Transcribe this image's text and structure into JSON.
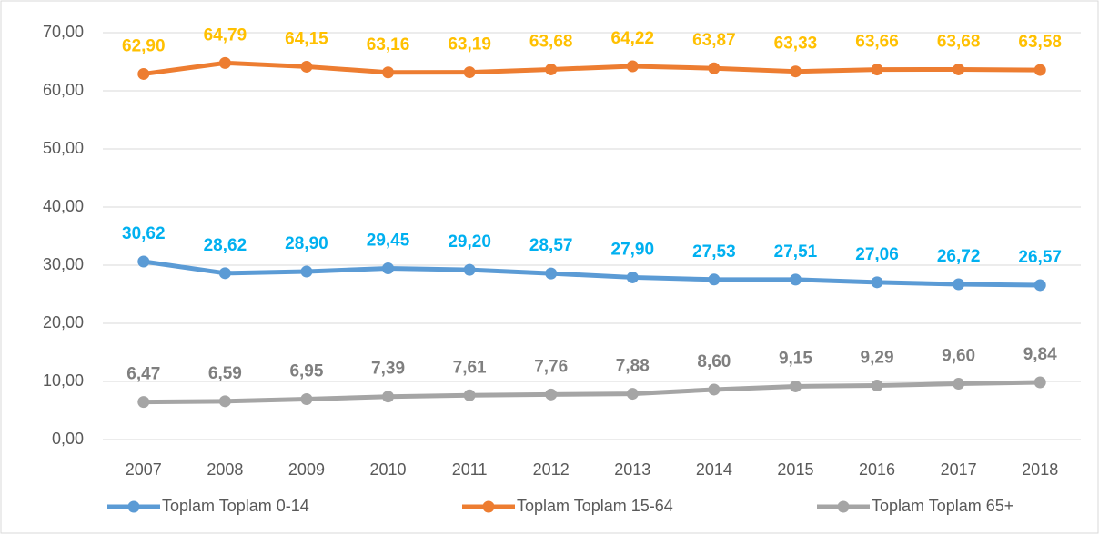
{
  "chart_data": {
    "type": "line",
    "categories": [
      "2007",
      "2008",
      "2009",
      "2010",
      "2011",
      "2012",
      "2013",
      "2014",
      "2015",
      "2016",
      "2017",
      "2018"
    ],
    "series": [
      {
        "name": "Toplam Toplam 0-14",
        "color": "#5b9bd5",
        "label_color": "#00b0f0",
        "values": [
          30.62,
          28.62,
          28.9,
          29.45,
          29.2,
          28.57,
          27.9,
          27.53,
          27.51,
          27.06,
          26.72,
          26.57
        ],
        "value_labels": [
          "30,62",
          "28,62",
          "28,90",
          "29,45",
          "29,20",
          "28,57",
          "27,90",
          "27,53",
          "27,51",
          "27,06",
          "26,72",
          "26,57"
        ]
      },
      {
        "name": "Toplam Toplam 15-64",
        "color": "#ed7d31",
        "label_color": "#ffc000",
        "values": [
          62.9,
          64.79,
          64.15,
          63.16,
          63.19,
          63.68,
          64.22,
          63.87,
          63.33,
          63.66,
          63.68,
          63.58
        ],
        "value_labels": [
          "62,90",
          "64,79",
          "64,15",
          "63,16",
          "63,19",
          "63,68",
          "64,22",
          "63,87",
          "63,33",
          "63,66",
          "63,68",
          "63,58"
        ]
      },
      {
        "name": "Toplam Toplam 65+",
        "color": "#a5a5a5",
        "label_color": "#7f7f7f",
        "values": [
          6.47,
          6.59,
          6.95,
          7.39,
          7.61,
          7.76,
          7.88,
          8.6,
          9.15,
          9.29,
          9.6,
          9.84
        ],
        "value_labels": [
          "6,47",
          "6,59",
          "6,95",
          "7,39",
          "7,61",
          "7,76",
          "7,88",
          "8,60",
          "9,15",
          "9,29",
          "9,60",
          "9,84"
        ]
      }
    ],
    "ylim": [
      0,
      70
    ],
    "yticks": [
      {
        "value": 0,
        "label": "0,00"
      },
      {
        "value": 10,
        "label": "10,00"
      },
      {
        "value": 20,
        "label": "20,00"
      },
      {
        "value": 30,
        "label": "30,00"
      },
      {
        "value": 40,
        "label": "40,00"
      },
      {
        "value": 50,
        "label": "50,00"
      },
      {
        "value": 60,
        "label": "60,00"
      },
      {
        "value": 70,
        "label": "70,00"
      }
    ],
    "grid": true,
    "legend": "bottom"
  }
}
